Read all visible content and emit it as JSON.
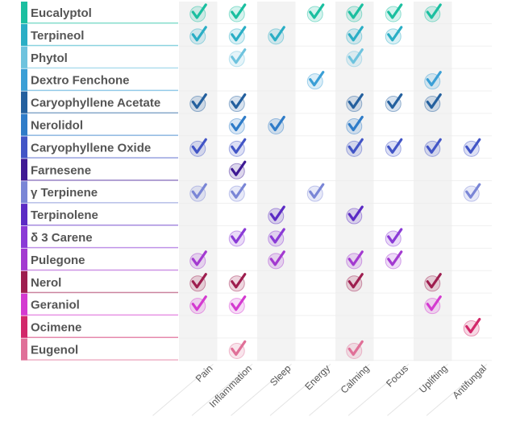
{
  "chart_data": {
    "type": "table",
    "categories": [
      "Pain",
      "Inflammation",
      "Sleep",
      "Energy",
      "Calming",
      "Focus",
      "Uplifting",
      "Antifungal"
    ],
    "rows": [
      {
        "name": "Eucalyptol",
        "color": "#1bbfa0",
        "checks": [
          1,
          1,
          0,
          1,
          1,
          1,
          1,
          0
        ]
      },
      {
        "name": "Terpineol",
        "color": "#2aaec5",
        "checks": [
          1,
          1,
          1,
          0,
          1,
          1,
          0,
          0
        ]
      },
      {
        "name": "Phytol",
        "color": "#6ec3de",
        "checks": [
          0,
          1,
          0,
          0,
          1,
          0,
          0,
          0
        ]
      },
      {
        "name": "Dextro Fenchone",
        "color": "#3a9fd6",
        "checks": [
          0,
          0,
          0,
          1,
          0,
          0,
          1,
          0
        ]
      },
      {
        "name": "Caryophyllene  Acetate",
        "color": "#24609e",
        "checks": [
          1,
          1,
          0,
          0,
          1,
          1,
          1,
          0
        ]
      },
      {
        "name": "Nerolidol",
        "color": "#2f7cc8",
        "checks": [
          0,
          1,
          1,
          0,
          1,
          0,
          0,
          0
        ]
      },
      {
        "name": "Caryophyllene Oxide",
        "color": "#4255c6",
        "checks": [
          1,
          1,
          0,
          0,
          1,
          1,
          1,
          1
        ]
      },
      {
        "name": "Farnesene",
        "color": "#3f1a94",
        "checks": [
          0,
          1,
          0,
          0,
          0,
          0,
          0,
          0
        ]
      },
      {
        "name": "γ Terpinene",
        "color": "#7a86d6",
        "checks": [
          1,
          1,
          0,
          1,
          0,
          0,
          0,
          1
        ]
      },
      {
        "name": "Terpinolene",
        "color": "#5b2bc4",
        "checks": [
          0,
          0,
          1,
          0,
          1,
          0,
          0,
          0
        ]
      },
      {
        "name": "δ 3 Carene",
        "color": "#8a3ad6",
        "checks": [
          0,
          1,
          1,
          0,
          0,
          1,
          0,
          0
        ]
      },
      {
        "name": "Pulegone",
        "color": "#a33ad0",
        "checks": [
          1,
          0,
          1,
          0,
          1,
          1,
          0,
          0
        ]
      },
      {
        "name": "Nerol",
        "color": "#9e1e4f",
        "checks": [
          1,
          1,
          0,
          0,
          1,
          0,
          1,
          0
        ]
      },
      {
        "name": "Geraniol",
        "color": "#d43ad0",
        "checks": [
          1,
          1,
          0,
          0,
          0,
          0,
          1,
          0
        ]
      },
      {
        "name": "Ocimene",
        "color": "#d2286a",
        "checks": [
          0,
          0,
          0,
          0,
          0,
          0,
          0,
          1
        ]
      },
      {
        "name": "Eugenol",
        "color": "#e07098",
        "checks": [
          0,
          1,
          0,
          0,
          1,
          0,
          0,
          0
        ]
      }
    ]
  }
}
